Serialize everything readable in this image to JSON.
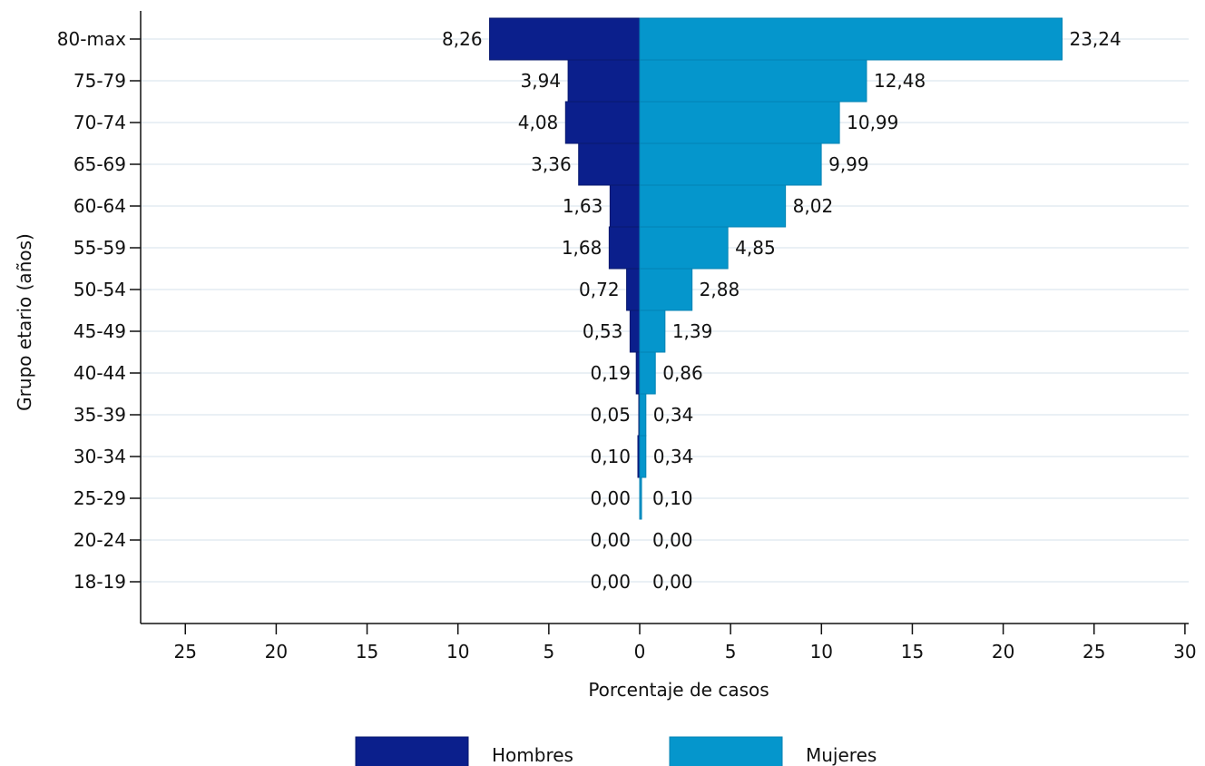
{
  "chart_data": {
    "type": "bar",
    "orientation": "horizontal",
    "layout": "population-pyramid",
    "categories": [
      "80-max",
      "75-79",
      "70-74",
      "65-69",
      "60-64",
      "55-59",
      "50-54",
      "45-49",
      "40-44",
      "35-39",
      "30-34",
      "25-29",
      "20-24",
      "18-19"
    ],
    "series": [
      {
        "name": "Hombres",
        "side": "left",
        "color": "#0b1f8c",
        "values": [
          8.26,
          3.94,
          4.08,
          3.36,
          1.63,
          1.68,
          0.72,
          0.53,
          0.19,
          0.05,
          0.1,
          0.0,
          0.0,
          0.0
        ],
        "labels": [
          "8,26",
          "3,94",
          "4,08",
          "3,36",
          "1,63",
          "1,68",
          "0,72",
          "0,53",
          "0,19",
          "0,05",
          "0,10",
          "0,00",
          "0,00",
          "0,00"
        ]
      },
      {
        "name": "Mujeres",
        "side": "right",
        "color": "#0596cc",
        "values": [
          23.24,
          12.48,
          10.99,
          9.99,
          8.02,
          4.85,
          2.88,
          1.39,
          0.86,
          0.34,
          0.34,
          0.1,
          0.0,
          0.0
        ],
        "labels": [
          "23,24",
          "12,48",
          "10,99",
          "9,99",
          "8,02",
          "4,85",
          "2,88",
          "1,39",
          "0,86",
          "0,34",
          "0,34",
          "0,10",
          "0,00",
          "0,00"
        ]
      }
    ],
    "xlabel": "Porcentaje de casos",
    "ylabel": "Grupo etario (años)",
    "xlim": [
      -25,
      30
    ],
    "xticks": [
      -25,
      -20,
      -15,
      -10,
      -5,
      0,
      5,
      10,
      15,
      20,
      25,
      30
    ],
    "xtick_labels": [
      "25",
      "20",
      "15",
      "10",
      "5",
      "0",
      "5",
      "10",
      "15",
      "20",
      "25",
      "30"
    ],
    "grid": "horizontal",
    "legend_position": "bottom"
  }
}
